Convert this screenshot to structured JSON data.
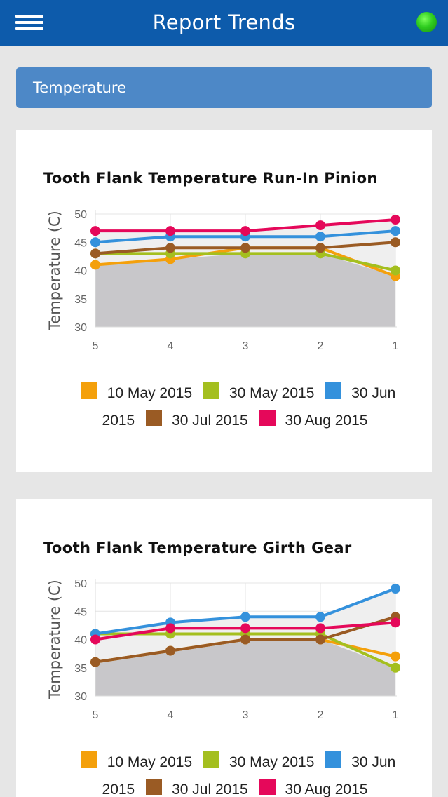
{
  "app": {
    "title": "Report Trends"
  },
  "section": {
    "title": "Temperature"
  },
  "colors": {
    "header": "#0d5bab",
    "section": "#4d88c7",
    "status": "#2ecc1f"
  },
  "chart_data": [
    {
      "type": "line",
      "title": "Tooth Flank Temperature Run-In Pinion",
      "xlabel": "",
      "ylabel": "Temperature (C)",
      "categories": [
        "5",
        "4",
        "3",
        "2",
        "1"
      ],
      "ylim": [
        30,
        50
      ],
      "yticks": [
        30,
        35,
        40,
        45,
        50
      ],
      "grid": true,
      "legend": "bottom",
      "series": [
        {
          "name": "10 May 2015",
          "color": "#f4a00b",
          "values": [
            41,
            42,
            44,
            44,
            39
          ]
        },
        {
          "name": "30 May 2015",
          "color": "#a4bf1f",
          "values": [
            43,
            43,
            43,
            43,
            40
          ]
        },
        {
          "name": "30 Jun 2015",
          "color": "#3491dc",
          "values": [
            45,
            46,
            46,
            46,
            47
          ]
        },
        {
          "name": "30 Jul 2015",
          "color": "#9a5b24",
          "values": [
            43,
            44,
            44,
            44,
            45
          ]
        },
        {
          "name": "30 Aug 2015",
          "color": "#e5085a",
          "values": [
            47,
            47,
            47,
            48,
            49
          ]
        }
      ]
    },
    {
      "type": "line",
      "title": "Tooth Flank Temperature Girth Gear",
      "xlabel": "",
      "ylabel": "Temperature (C)",
      "categories": [
        "5",
        "4",
        "3",
        "2",
        "1"
      ],
      "ylim": [
        30,
        50
      ],
      "yticks": [
        30,
        35,
        40,
        45,
        50
      ],
      "grid": true,
      "legend": "bottom",
      "series": [
        {
          "name": "10 May 2015",
          "color": "#f4a00b",
          "values": [
            36,
            38,
            40,
            40,
            37
          ]
        },
        {
          "name": "30 May 2015",
          "color": "#a4bf1f",
          "values": [
            41,
            41,
            41,
            41,
            35
          ]
        },
        {
          "name": "30 Jun 2015",
          "color": "#3491dc",
          "values": [
            41,
            43,
            44,
            44,
            49
          ]
        },
        {
          "name": "30 Jul 2015",
          "color": "#9a5b24",
          "values": [
            36,
            38,
            40,
            40,
            44
          ]
        },
        {
          "name": "30 Aug 2015",
          "color": "#e5085a",
          "values": [
            40,
            42,
            42,
            42,
            43
          ]
        }
      ]
    }
  ]
}
